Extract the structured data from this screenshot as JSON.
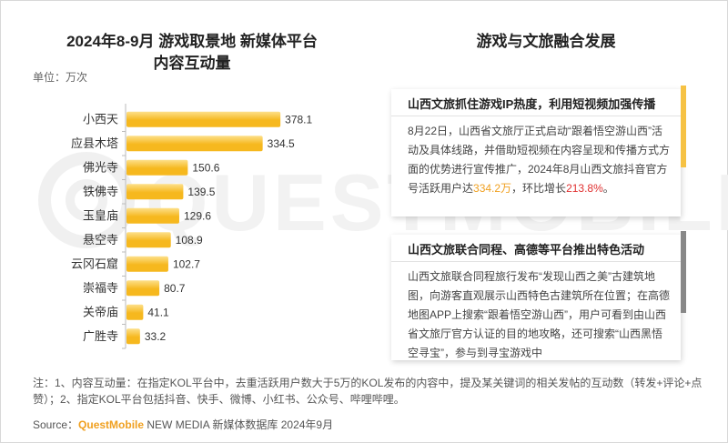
{
  "left_panel": {
    "title_line1": "2024年8-9月 游戏取景地 新媒体平台",
    "title_line2": "内容互动量",
    "unit": "单位：万次"
  },
  "chart_data": {
    "type": "bar",
    "orientation": "horizontal",
    "title": "2024年8-9月 游戏取景地 新媒体平台 内容互动量",
    "unit": "单位：万次",
    "categories": [
      "小西天",
      "应县木塔",
      "佛光寺",
      "铁佛寺",
      "玉皇庙",
      "悬空寺",
      "云冈石窟",
      "崇福寺",
      "关帝庙",
      "广胜寺"
    ],
    "values": [
      378.1,
      334.5,
      150.6,
      139.5,
      129.6,
      108.9,
      102.7,
      80.7,
      41.1,
      33.2
    ],
    "value_labels": [
      "378.1",
      "334.5",
      "150.6",
      "139.5",
      "129.6",
      "108.9",
      "102.7",
      "80.7",
      "41.1",
      "33.2"
    ],
    "xlim": [
      0,
      380
    ],
    "grid": false,
    "bar_color": "#f6b81e",
    "bar_color_light": "#fde08a"
  },
  "right_panel": {
    "title": "游戏与文旅融合发展",
    "card1": {
      "heading": "山西文旅抓住游戏IP热度，利用短视频加强传播",
      "text_a": "8月22日，山西省文旅厅正式启动“跟着悟空游山西”活动及具体线路，并借助短视频在内容呈现和传播方式方面的优势进行宣传推广，2024年8月山西文旅抖音官方号活跃用户达",
      "highlight1": "334.2万",
      "text_b": "，环比增长",
      "highlight2": "213.8%",
      "text_c": "。"
    },
    "card2": {
      "heading": "山西文旅联合同程、高德等平台推出特色活动",
      "text": "山西文旅联合同程旅行发布“发现山西之美”古建筑地图，向游客直观展示山西特色古建筑所在位置；在高德地图APP上搜索“跟着悟空游山西”，用户可看到由山西省文旅厅官方认证的目的地攻略，还可搜索“山西黑悟空寻宝”，参与到寻宝游戏中"
    }
  },
  "footer": {
    "note": "注：1、内容互动量：在指定KOL平台中，去重活跃用户数大于5万的KOL发布的内容中，提及某关键词的相关发帖的互动数（转发+评论+点赞）；2、指定KOL平台包括抖音、快手、微博、小红书、公众号、哔哩哔哩。",
    "source_prefix": "Source：",
    "source_brand": "QuestMobile",
    "source_rest": " NEW MEDIA 新媒体数据库 2024年9月"
  },
  "watermark": "QUESTMOBILE"
}
